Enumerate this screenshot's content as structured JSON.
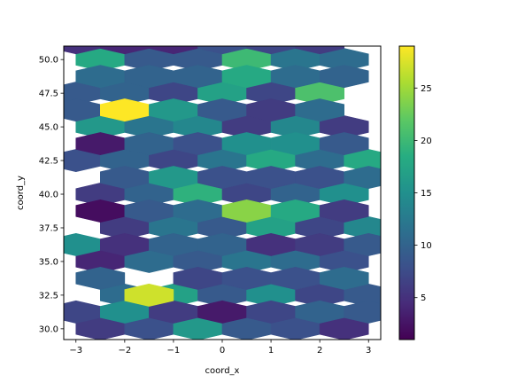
{
  "chart_data": {
    "type": "hexbin",
    "xlabel": "coord_x",
    "ylabel": "coord_y",
    "xlim": [
      -3.25,
      3.25
    ],
    "ylim": [
      29.2,
      51.0
    ],
    "xticks": [
      -3,
      -2,
      -1,
      0,
      1,
      2,
      3
    ],
    "xtick_labels": [
      "−3",
      "−2",
      "−1",
      "0",
      "1",
      "2",
      "3"
    ],
    "yticks": [
      30.0,
      32.5,
      35.0,
      37.5,
      40.0,
      42.5,
      45.0,
      47.5,
      50.0
    ],
    "ytick_labels": [
      "30.0",
      "32.5",
      "35.0",
      "37.5",
      "40.0",
      "42.5",
      "45.0",
      "47.5",
      "50.0"
    ],
    "colormap": "viridis",
    "colorbar": {
      "min": 1,
      "max": 29,
      "ticks": [
        5,
        10,
        15,
        20,
        25
      ],
      "tick_labels": [
        "5",
        "10",
        "15",
        "20",
        "25"
      ]
    },
    "grid": false,
    "cells": [
      {
        "x": -2.5,
        "y": 30.0,
        "count": 6
      },
      {
        "x": -1.5,
        "y": 30.0,
        "count": 8
      },
      {
        "x": -0.5,
        "y": 30.0,
        "count": 16
      },
      {
        "x": 0.5,
        "y": 30.0,
        "count": 9
      },
      {
        "x": 1.5,
        "y": 30.0,
        "count": 8
      },
      {
        "x": 2.5,
        "y": 30.0,
        "count": 5
      },
      {
        "x": -2.0,
        "y": 32.5,
        "count": 11
      },
      {
        "x": -1.0,
        "y": 32.5,
        "count": 17
      },
      {
        "x": 0.0,
        "y": 32.5,
        "count": 9
      },
      {
        "x": 1.0,
        "y": 32.5,
        "count": 15
      },
      {
        "x": 2.0,
        "y": 32.5,
        "count": 7
      },
      {
        "x": 3.0,
        "y": 32.5,
        "count": 9
      },
      {
        "x": -2.5,
        "y": 35.0,
        "count": 4
      },
      {
        "x": -1.5,
        "y": 35.0,
        "count": 11
      },
      {
        "x": -0.5,
        "y": 35.0,
        "count": 9
      },
      {
        "x": 0.5,
        "y": 35.0,
        "count": 12
      },
      {
        "x": 1.5,
        "y": 35.0,
        "count": 11
      },
      {
        "x": 2.5,
        "y": 35.0,
        "count": 8
      },
      {
        "x": -2.0,
        "y": 37.5,
        "count": 6
      },
      {
        "x": -1.0,
        "y": 37.5,
        "count": 12
      },
      {
        "x": 0.0,
        "y": 37.5,
        "count": 9
      },
      {
        "x": 1.0,
        "y": 37.5,
        "count": 17
      },
      {
        "x": 2.0,
        "y": 37.5,
        "count": 7
      },
      {
        "x": 3.0,
        "y": 37.5,
        "count": 14
      },
      {
        "x": -2.5,
        "y": 40.0,
        "count": 6
      },
      {
        "x": -1.5,
        "y": 40.0,
        "count": 10
      },
      {
        "x": -0.5,
        "y": 40.0,
        "count": 19
      },
      {
        "x": 0.5,
        "y": 40.0,
        "count": 7
      },
      {
        "x": 1.5,
        "y": 40.0,
        "count": 10
      },
      {
        "x": 2.5,
        "y": 40.0,
        "count": 15
      },
      {
        "x": -3.0,
        "y": 42.5,
        "count": 8
      },
      {
        "x": -2.0,
        "y": 42.5,
        "count": 10
      },
      {
        "x": -1.0,
        "y": 42.5,
        "count": 7
      },
      {
        "x": 0.0,
        "y": 42.5,
        "count": 12
      },
      {
        "x": 1.0,
        "y": 42.5,
        "count": 18
      },
      {
        "x": 2.0,
        "y": 42.5,
        "count": 11
      },
      {
        "x": 3.0,
        "y": 42.5,
        "count": 18
      },
      {
        "x": -2.5,
        "y": 45.0,
        "count": 16
      },
      {
        "x": -1.5,
        "y": 45.0,
        "count": 12
      },
      {
        "x": -0.5,
        "y": 45.0,
        "count": 14
      },
      {
        "x": 0.5,
        "y": 45.0,
        "count": 6
      },
      {
        "x": 1.5,
        "y": 45.0,
        "count": 14
      },
      {
        "x": 2.5,
        "y": 45.0,
        "count": 6
      },
      {
        "x": -3.0,
        "y": 47.5,
        "count": 9
      },
      {
        "x": -2.0,
        "y": 47.5,
        "count": 10
      },
      {
        "x": -1.0,
        "y": 47.5,
        "count": 7
      },
      {
        "x": 0.0,
        "y": 47.5,
        "count": 17
      },
      {
        "x": 1.0,
        "y": 47.5,
        "count": 7
      },
      {
        "x": 2.0,
        "y": 47.5,
        "count": 21
      },
      {
        "x": -2.5,
        "y": 50.0,
        "count": 18
      },
      {
        "x": -1.5,
        "y": 50.0,
        "count": 9
      },
      {
        "x": -0.5,
        "y": 50.0,
        "count": 9
      },
      {
        "x": 0.5,
        "y": 50.0,
        "count": 20
      },
      {
        "x": 1.5,
        "y": 50.0,
        "count": 12
      },
      {
        "x": 2.5,
        "y": 50.0,
        "count": 11
      },
      {
        "x": -3.0,
        "y": 31.25,
        "count": 7
      },
      {
        "x": -2.0,
        "y": 31.25,
        "count": 15
      },
      {
        "x": -1.0,
        "y": 31.25,
        "count": 6
      },
      {
        "x": 0.0,
        "y": 31.25,
        "count": 3
      },
      {
        "x": 1.0,
        "y": 31.25,
        "count": 7
      },
      {
        "x": 2.0,
        "y": 31.25,
        "count": 10
      },
      {
        "x": 3.0,
        "y": 31.25,
        "count": 9
      },
      {
        "x": -2.5,
        "y": 33.75,
        "count": 10
      },
      {
        "x": -1.5,
        "y": 32.5,
        "count": 27
      },
      {
        "x": -0.5,
        "y": 33.75,
        "count": 7
      },
      {
        "x": 0.5,
        "y": 33.75,
        "count": 8
      },
      {
        "x": 1.5,
        "y": 33.75,
        "count": 8
      },
      {
        "x": 2.5,
        "y": 33.75,
        "count": 11
      },
      {
        "x": -3.0,
        "y": 36.25,
        "count": 15
      },
      {
        "x": -2.0,
        "y": 36.25,
        "count": 5
      },
      {
        "x": -1.0,
        "y": 36.25,
        "count": 10
      },
      {
        "x": 0.0,
        "y": 36.25,
        "count": 10
      },
      {
        "x": 1.0,
        "y": 36.25,
        "count": 5
      },
      {
        "x": 2.0,
        "y": 36.25,
        "count": 6
      },
      {
        "x": 3.0,
        "y": 36.25,
        "count": 9
      },
      {
        "x": -2.5,
        "y": 38.75,
        "count": 2
      },
      {
        "x": -1.5,
        "y": 38.75,
        "count": 9
      },
      {
        "x": -0.5,
        "y": 38.75,
        "count": 11
      },
      {
        "x": 0.5,
        "y": 38.75,
        "count": 24
      },
      {
        "x": 1.5,
        "y": 38.75,
        "count": 18
      },
      {
        "x": 2.5,
        "y": 38.75,
        "count": 6
      },
      {
        "x": -2.0,
        "y": 41.25,
        "count": 9
      },
      {
        "x": -1.0,
        "y": 41.25,
        "count": 16
      },
      {
        "x": 0.0,
        "y": 41.25,
        "count": 8
      },
      {
        "x": 1.0,
        "y": 41.25,
        "count": 8
      },
      {
        "x": 2.0,
        "y": 41.25,
        "count": 8
      },
      {
        "x": 3.0,
        "y": 41.25,
        "count": 11
      },
      {
        "x": -2.5,
        "y": 43.75,
        "count": 3
      },
      {
        "x": -1.5,
        "y": 43.75,
        "count": 10
      },
      {
        "x": -0.5,
        "y": 43.75,
        "count": 8
      },
      {
        "x": 0.5,
        "y": 43.75,
        "count": 15
      },
      {
        "x": 1.5,
        "y": 43.75,
        "count": 15
      },
      {
        "x": 2.5,
        "y": 43.75,
        "count": 9
      },
      {
        "x": -3.0,
        "y": 46.25,
        "count": 9
      },
      {
        "x": -2.0,
        "y": 46.25,
        "count": 29
      },
      {
        "x": -1.0,
        "y": 46.25,
        "count": 16
      },
      {
        "x": 0.0,
        "y": 46.25,
        "count": 9
      },
      {
        "x": 1.0,
        "y": 46.25,
        "count": 6
      },
      {
        "x": 2.0,
        "y": 46.25,
        "count": 11
      },
      {
        "x": -2.5,
        "y": 48.75,
        "count": 11
      },
      {
        "x": -1.5,
        "y": 48.75,
        "count": 10
      },
      {
        "x": -0.5,
        "y": 48.75,
        "count": 10
      },
      {
        "x": 0.5,
        "y": 48.75,
        "count": 18
      },
      {
        "x": 1.5,
        "y": 48.75,
        "count": 11
      },
      {
        "x": 2.5,
        "y": 48.75,
        "count": 10
      },
      {
        "x": -3.0,
        "y": 51.25,
        "count": 5
      },
      {
        "x": -2.0,
        "y": 51.25,
        "count": 4
      },
      {
        "x": -1.0,
        "y": 51.25,
        "count": 4
      },
      {
        "x": 0.0,
        "y": 51.25,
        "count": 8
      },
      {
        "x": 1.0,
        "y": 51.25,
        "count": 7
      },
      {
        "x": 2.0,
        "y": 51.25,
        "count": 6
      }
    ]
  }
}
